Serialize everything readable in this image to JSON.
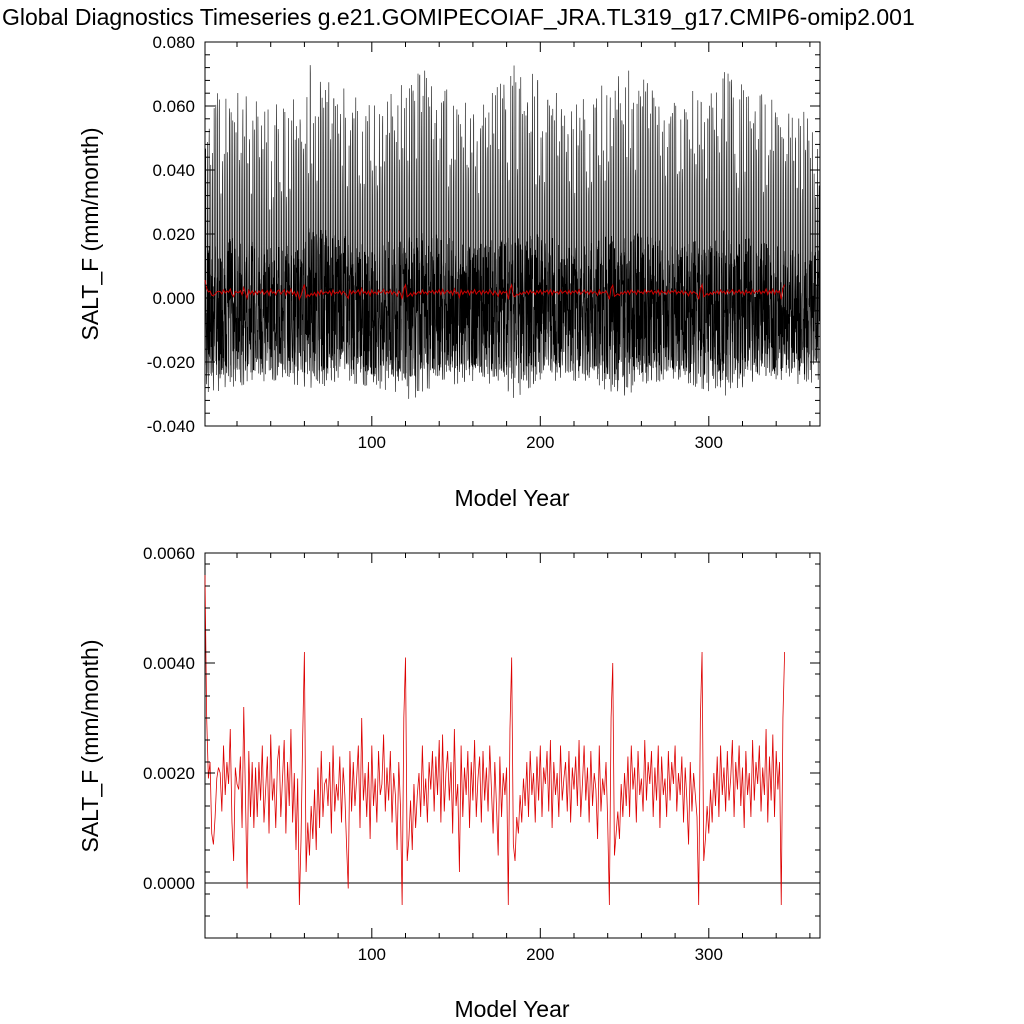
{
  "title": "Global Diagnostics Timeseries g.e21.GOMIPECOIAF_JRA.TL319_g17.CMIP6-omip2.001",
  "chart_data": [
    {
      "type": "line",
      "xlabel": "Model Year",
      "ylabel": "SALT_F (mm/month)",
      "xlim": [
        1,
        366
      ],
      "ylim": [
        -0.04,
        0.08
      ],
      "x_ticks": [
        100,
        200,
        300
      ],
      "x_tick_labels": [
        "100",
        "200",
        "300"
      ],
      "y_ticks": [
        -0.04,
        -0.02,
        0.0,
        0.02,
        0.04,
        0.06,
        0.08
      ],
      "y_tick_labels": [
        "-0.040",
        "-0.020",
        "0.000",
        "0.020",
        "0.040",
        "0.060",
        "0.080"
      ],
      "series": [
        {
          "color": "#000000",
          "description_values": "monthly values, oscillating roughly between -0.030 and 0.065 with ~61-year cycle of amplitude envelopes",
          "monthly_envelope": {
            "year": [
              1,
              20,
              40,
              60,
              62,
              80,
              100,
              120,
              122,
              140,
              160,
              182,
              184,
              200,
              220,
              244,
              246,
              260,
              280,
              305,
              307,
              320,
              340,
              366
            ],
            "max": [
              0.064,
              0.068,
              0.06,
              0.066,
              0.074,
              0.069,
              0.062,
              0.07,
              0.074,
              0.069,
              0.061,
              0.07,
              0.074,
              0.069,
              0.061,
              0.07,
              0.074,
              0.069,
              0.061,
              0.07,
              0.074,
              0.069,
              0.061,
              0.06
            ],
            "min": [
              -0.03,
              -0.028,
              -0.026,
              -0.028,
              -0.03,
              -0.026,
              -0.028,
              -0.03,
              -0.032,
              -0.028,
              -0.026,
              -0.03,
              -0.032,
              -0.028,
              -0.026,
              -0.03,
              -0.032,
              -0.028,
              -0.026,
              -0.03,
              -0.032,
              -0.028,
              -0.026,
              -0.028
            ]
          }
        },
        {
          "color": "#cc0000",
          "description_values": "annual mean overlaid, ~0.0015"
        }
      ]
    },
    {
      "type": "line",
      "xlabel": "Model Year",
      "ylabel": "SALT_F (mm/month)",
      "xlim": [
        1,
        366
      ],
      "ylim": [
        -0.001,
        0.006
      ],
      "x_ticks": [
        100,
        200,
        300
      ],
      "x_tick_labels": [
        "100",
        "200",
        "300"
      ],
      "y_ticks": [
        0.0,
        0.002,
        0.004,
        0.006
      ],
      "y_tick_labels": [
        "0.0000",
        "0.0020",
        "0.0040",
        "0.0060"
      ],
      "zero_line": true,
      "series": [
        {
          "color": "#dd0000",
          "x_start": 1,
          "values": [
            0.0056,
            0.003,
            0.0019,
            0.0022,
            0.0009,
            0.0007,
            0.0012,
            0.0019,
            0.0021,
            0.002,
            0.0013,
            0.0025,
            0.0016,
            0.0022,
            0.0018,
            0.0028,
            0.0011,
            0.0004,
            0.0021,
            0.0018,
            0.0017,
            0.0023,
            0.001,
            0.0032,
            0.0016,
            -0.0001,
            0.0024,
            0.0012,
            0.0022,
            0.001,
            0.0021,
            0.0012,
            0.0022,
            0.0015,
            0.0025,
            0.0011,
            0.0017,
            0.0023,
            0.0009,
            0.0027,
            0.0015,
            0.0019,
            0.001,
            0.0022,
            0.0025,
            0.0012,
            0.0019,
            0.0026,
            0.0009,
            0.0022,
            0.0014,
            0.0028,
            0.0011,
            0.002,
            0.0006,
            0.0019,
            -0.0004,
            0.0008,
            0.0027,
            0.0042,
            0.0002,
            0.0011,
            0.0005,
            0.0014,
            0.0008,
            0.0017,
            0.0006,
            0.0021,
            0.001,
            0.0024,
            0.0012,
            0.0018,
            0.0019,
            0.0014,
            0.0022,
            0.0009,
            0.0025,
            0.0013,
            0.0018,
            0.0015,
            0.0023,
            0.0011,
            0.0021,
            0.0016,
            0.0007,
            -0.0001,
            0.0024,
            0.0013,
            0.0022,
            0.0014,
            0.0019,
            0.0025,
            0.001,
            0.003,
            0.0015,
            0.002,
            0.0012,
            0.0022,
            0.0008,
            0.0025,
            0.0014,
            0.0019,
            0.0011,
            0.0024,
            0.0016,
            0.0018,
            0.0027,
            0.0013,
            0.0021,
            0.0015,
            0.0024,
            0.0011,
            0.002,
            0.0016,
            0.0006,
            0.0022,
            0.0014,
            -0.0004,
            0.003,
            0.0041,
            0.0004,
            0.0008,
            0.0015,
            0.0006,
            0.0018,
            0.001,
            0.0016,
            0.002,
            0.0012,
            0.0025,
            0.0014,
            0.0019,
            0.0011,
            0.0022,
            0.0017,
            0.0024,
            0.0013,
            0.0023,
            0.0016,
            0.0026,
            0.0011,
            0.0027,
            0.0013,
            0.002,
            0.0024,
            0.0015,
            0.0022,
            0.0009,
            0.0028,
            0.0014,
            0.0018,
            0.0002,
            0.0025,
            0.0012,
            0.0021,
            0.0016,
            0.0024,
            0.001,
            0.0022,
            0.0015,
            0.0026,
            0.0012,
            0.0019,
            0.0023,
            0.0011,
            0.0024,
            0.0015,
            0.0021,
            0.0013,
            0.0025,
            0.0017,
            0.0009,
            0.0022,
            0.0014,
            0.0005,
            0.0023,
            0.0012,
            0.002,
            0.0016,
            0.0021,
            -0.0004,
            0.0028,
            0.0041,
            0.0007,
            0.0004,
            0.0012,
            0.0009,
            0.0016,
            0.0011,
            0.0019,
            0.0014,
            0.0022,
            0.0012,
            0.0024,
            0.0016,
            0.002,
            0.0011,
            0.0023,
            0.0015,
            0.0025,
            0.0012,
            0.0021,
            0.0018,
            0.0024,
            0.0013,
            0.0026,
            0.001,
            0.0022,
            0.0016,
            0.002,
            0.0012,
            0.0025,
            0.0015,
            0.0019,
            0.0022,
            0.0013,
            0.0024,
            0.0011,
            0.0021,
            0.0017,
            0.0023,
            0.0014,
            0.0026,
            0.0012,
            0.0018,
            0.0025,
            0.0015,
            0.0021,
            0.0011,
            0.0024,
            0.0014,
            0.002,
            0.0017,
            0.0008,
            0.0025,
            0.0013,
            0.0019,
            0.0016,
            0.0022,
            0.0011,
            -0.0004,
            0.003,
            0.004,
            0.0005,
            0.0009,
            0.0013,
            0.0008,
            0.0018,
            0.0012,
            0.002,
            0.0014,
            0.0023,
            0.0012,
            0.0025,
            0.0017,
            0.0021,
            0.0011,
            0.0024,
            0.0016,
            0.0019,
            0.0013,
            0.0026,
            0.0015,
            0.0022,
            0.0018,
            0.0024,
            0.0012,
            0.0021,
            0.0015,
            0.0025,
            0.001,
            0.0023,
            0.0016,
            0.0019,
            0.0012,
            0.0024,
            0.0015,
            0.0022,
            0.0018,
            0.0025,
            0.0013,
            0.002,
            0.0016,
            0.0023,
            0.0011,
            0.0021,
            0.0015,
            0.0007,
            0.0022,
            0.0013,
            0.002,
            0.0016,
            0.0012,
            -0.0004,
            0.003,
            0.0042,
            0.0004,
            0.0008,
            0.0014,
            0.0009,
            0.0017,
            0.0011,
            0.002,
            0.0014,
            0.0023,
            0.0012,
            0.0025,
            0.0016,
            0.0021,
            0.0013,
            0.0024,
            0.0015,
            0.0019,
            0.0026,
            0.0012,
            0.0022,
            0.0017,
            0.0025,
            0.0014,
            0.0021,
            0.001,
            0.0024,
            0.0016,
            0.002,
            0.0012,
            0.0026,
            0.0015,
            0.0022,
            0.0018,
            0.0025,
            0.0013,
            0.0021,
            0.0016,
            0.0028,
            0.0011,
            0.0023,
            0.0015,
            0.0027,
            0.0012,
            0.0024,
            0.0017,
            0.0022,
            -0.0004,
            0.003,
            0.0042
          ]
        }
      ]
    }
  ]
}
